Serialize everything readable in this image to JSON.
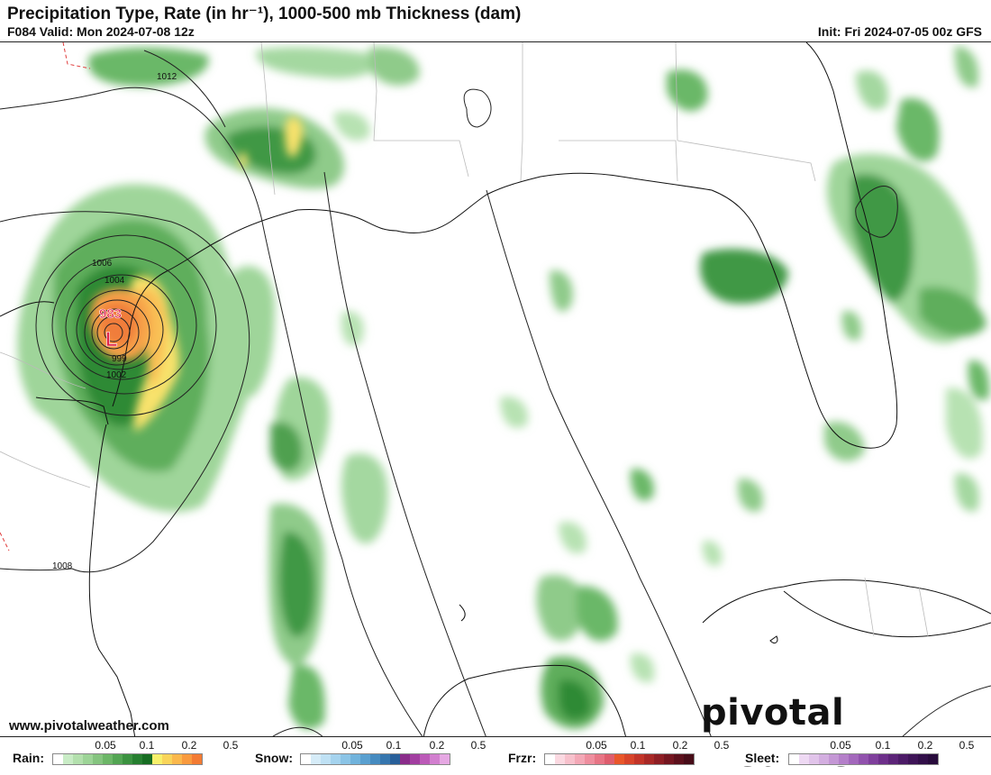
{
  "header": {
    "title": "Precipitation Type, Rate (in hr⁻¹), 1000-500 mb Thickness (dam)",
    "valid": "F084 Valid: Mon 2024-07-08 12z",
    "init": "Init: Fri 2024-07-05 00z GFS"
  },
  "map": {
    "low_center": {
      "label": "L",
      "pressure": "983"
    },
    "isobar_labels": [
      "1012",
      "1006",
      "1004",
      "999",
      "1002",
      "1008"
    ]
  },
  "footer": {
    "website": "www.pivotalweather.com",
    "logo_text": "pivotal weather"
  },
  "legend": {
    "rain": {
      "label": "Rain:",
      "ticks": [
        "0.05",
        "0.1",
        "0.2",
        "0.5"
      ],
      "colors": [
        "#ffffff",
        "#c9ecc6",
        "#b3e0ad",
        "#9dd497",
        "#85c47f",
        "#6cb667",
        "#53a553",
        "#3b9240",
        "#267f30",
        "#166c22",
        "#f7f06b",
        "#f9d45a",
        "#fbb84c",
        "#f99a3e",
        "#f37b33"
      ]
    },
    "snow": {
      "label": "Snow:",
      "ticks": [
        "0.05",
        "0.1",
        "0.2",
        "0.5"
      ],
      "colors": [
        "#ffffff",
        "#d6ecf8",
        "#bfe1f4",
        "#a5d3ee",
        "#8bc4e6",
        "#71b3dc",
        "#5aa0d0",
        "#468bc0",
        "#3676ae",
        "#285f99",
        "#8a2c8a",
        "#a23ea0",
        "#bc5ab8",
        "#d27fcf",
        "#e6a8e3"
      ]
    },
    "frzr": {
      "label": "Frzr:",
      "ticks": [
        "0.05",
        "0.1",
        "0.2",
        "0.5"
      ],
      "colors": [
        "#ffffff",
        "#fbd9e1",
        "#f7c1cc",
        "#f3a8b6",
        "#ee8e9e",
        "#e77585",
        "#de5d6d",
        "#e9572a",
        "#d8442a",
        "#c23428",
        "#a82826",
        "#8e1e24",
        "#741620",
        "#5c101c",
        "#470c18"
      ]
    },
    "sleet": {
      "label": "Sleet:",
      "ticks": [
        "0.05",
        "0.1",
        "0.2",
        "0.5"
      ],
      "colors": [
        "#ffffff",
        "#eed9f3",
        "#e1c4ea",
        "#d3aee0",
        "#c497d5",
        "#b47fc9",
        "#a368bc",
        "#9152ad",
        "#7f3f9c",
        "#6d2f8a",
        "#5c2478",
        "#4c1b67",
        "#3e1457",
        "#320f49",
        "#280b3c"
      ]
    }
  }
}
